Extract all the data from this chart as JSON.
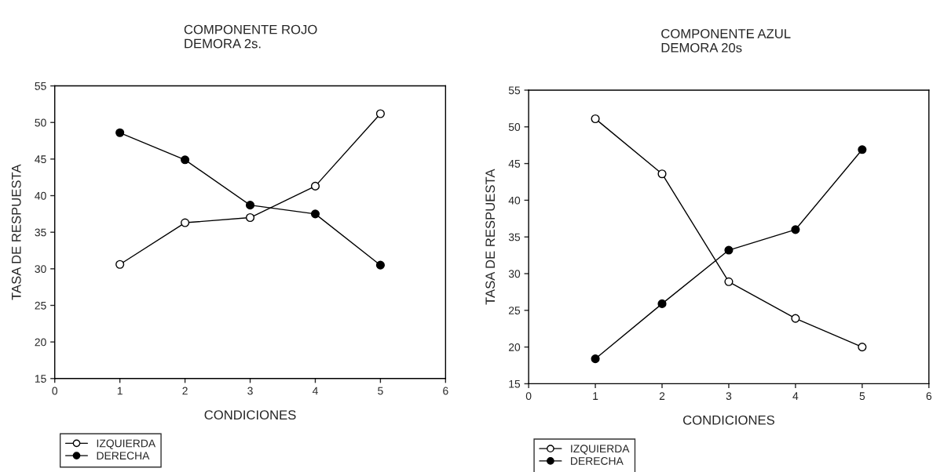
{
  "chart_data": [
    {
      "type": "line",
      "title": "COMPONENTE ROJO\nDEMORA 2s.",
      "xlabel": "CONDICIONES",
      "ylabel": "TASA DE RESPUESTA",
      "x": [
        1,
        2,
        3,
        4,
        5
      ],
      "xlim": [
        0,
        6
      ],
      "xticks": [
        0,
        1,
        2,
        3,
        4,
        5,
        6
      ],
      "ylim": [
        15,
        55
      ],
      "yticks": [
        15,
        20,
        25,
        30,
        35,
        40,
        45,
        50,
        55
      ],
      "grid": false,
      "legend": "bottom left",
      "marker": "circle",
      "line_style": "solid",
      "series": [
        {
          "name": "IZQUIERDA",
          "color": "#ffffff",
          "values": [
            30.6,
            36.3,
            37.0,
            41.3,
            51.2
          ]
        },
        {
          "name": "DERECHA",
          "color": "#000000",
          "values": [
            48.6,
            44.9,
            38.7,
            37.5,
            30.5
          ]
        }
      ]
    },
    {
      "type": "line",
      "title": "COMPONENTE AZUL\nDEMORA 20s",
      "xlabel": "CONDICIONES",
      "ylabel": "TASA DE RESPUESTA",
      "x": [
        1,
        2,
        3,
        4,
        5
      ],
      "xlim": [
        0,
        6
      ],
      "xticks": [
        0,
        1,
        2,
        3,
        4,
        5,
        6
      ],
      "ylim": [
        15,
        55
      ],
      "yticks": [
        15,
        20,
        25,
        30,
        35,
        40,
        45,
        50,
        55
      ],
      "grid": false,
      "legend": "bottom left",
      "marker": "circle",
      "line_style": "solid",
      "series": [
        {
          "name": "IZQUIERDA",
          "color": "#ffffff",
          "values": [
            51.1,
            43.6,
            28.9,
            23.9,
            20.0
          ]
        },
        {
          "name": "DERECHA",
          "color": "#000000",
          "values": [
            18.4,
            25.9,
            33.2,
            36.0,
            46.9
          ]
        }
      ]
    }
  ]
}
